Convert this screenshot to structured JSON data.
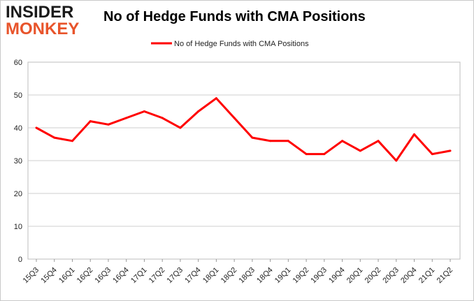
{
  "logo": {
    "line1": "INSIDER",
    "line2": "MONKEY"
  },
  "chart_data": {
    "type": "line",
    "title": "No of Hedge Funds with CMA Positions",
    "xlabel": "",
    "ylabel": "",
    "ylim": [
      0,
      60
    ],
    "yticks": [
      0,
      10,
      20,
      30,
      40,
      50,
      60
    ],
    "grid": true,
    "legend_position": "top-center",
    "categories": [
      "15Q3",
      "15Q4",
      "16Q1",
      "16Q2",
      "16Q3",
      "16Q4",
      "17Q1",
      "17Q2",
      "17Q3",
      "17Q4",
      "18Q1",
      "18Q2",
      "18Q3",
      "18Q4",
      "19Q1",
      "19Q2",
      "19Q3",
      "19Q4",
      "20Q1",
      "20Q2",
      "20Q3",
      "20Q4",
      "21Q1",
      "21Q2"
    ],
    "series": [
      {
        "name": "No of Hedge Funds with CMA Positions",
        "color": "#ff0000",
        "values": [
          40,
          37,
          36,
          42,
          41,
          43,
          45,
          43,
          40,
          45,
          49,
          43,
          37,
          36,
          36,
          32,
          32,
          36,
          33,
          36,
          30,
          38,
          32,
          33
        ]
      }
    ]
  }
}
